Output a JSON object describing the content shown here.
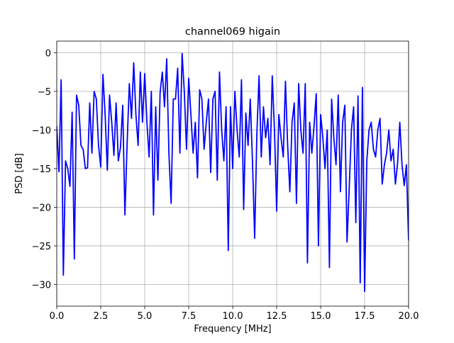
{
  "chart_data": {
    "type": "line",
    "title": "channel069 higain",
    "xlabel": "Frequency [MHz]",
    "ylabel": "PSD [dB]",
    "x": [
      0,
      0.125,
      0.25,
      0.375,
      0.5,
      0.625,
      0.75,
      0.875,
      1,
      1.125,
      1.25,
      1.375,
      1.5,
      1.625,
      1.75,
      1.875,
      2,
      2.125,
      2.25,
      2.375,
      2.5,
      2.625,
      2.75,
      2.875,
      3,
      3.125,
      3.25,
      3.375,
      3.5,
      3.625,
      3.75,
      3.875,
      4,
      4.125,
      4.25,
      4.375,
      4.5,
      4.625,
      4.75,
      4.875,
      5,
      5.125,
      5.25,
      5.375,
      5.5,
      5.625,
      5.75,
      5.875,
      6,
      6.125,
      6.25,
      6.375,
      6.5,
      6.625,
      6.75,
      6.875,
      7,
      7.125,
      7.25,
      7.375,
      7.5,
      7.625,
      7.75,
      7.875,
      8,
      8.125,
      8.25,
      8.375,
      8.5,
      8.625,
      8.75,
      8.875,
      9,
      9.125,
      9.25,
      9.375,
      9.5,
      9.625,
      9.75,
      9.875,
      10,
      10.125,
      10.25,
      10.375,
      10.5,
      10.625,
      10.75,
      10.875,
      11,
      11.125,
      11.25,
      11.375,
      11.5,
      11.625,
      11.75,
      11.875,
      12,
      12.125,
      12.25,
      12.375,
      12.5,
      12.625,
      12.75,
      12.875,
      13,
      13.125,
      13.25,
      13.375,
      13.5,
      13.625,
      13.75,
      13.875,
      14,
      14.125,
      14.25,
      14.375,
      14.5,
      14.625,
      14.75,
      14.875,
      15,
      15.125,
      15.25,
      15.375,
      15.5,
      15.625,
      15.75,
      15.875,
      16,
      16.125,
      16.25,
      16.375,
      16.5,
      16.625,
      16.75,
      16.875,
      17,
      17.125,
      17.25,
      17.375,
      17.5,
      17.625,
      17.75,
      17.875,
      18,
      18.125,
      18.25,
      18.375,
      18.5,
      18.625,
      18.75,
      18.875,
      19,
      19.125,
      19.25,
      19.375,
      19.5,
      19.625,
      19.75,
      19.875,
      20
    ],
    "series": [
      {
        "name": "PSD",
        "color": "#0000ff",
        "values": [
          -9.5,
          -15.4,
          -3.5,
          -28.8,
          -14,
          -15,
          -17.3,
          -7.7,
          -26.7,
          -5.5,
          -6.8,
          -12,
          -12.5,
          -15,
          -14.9,
          -6.5,
          -13,
          -5,
          -6,
          -12,
          -14.8,
          -2.8,
          -8,
          -15.2,
          -5.5,
          -9,
          -13.3,
          -6.5,
          -14,
          -12.2,
          -6.8,
          -21,
          -11.8,
          -4,
          -8.5,
          -1.3,
          -8,
          -12,
          -2.5,
          -9,
          -2.7,
          -9,
          -13.5,
          -5,
          -21,
          -7,
          -16.5,
          -5.2,
          -2.5,
          -7,
          -0.8,
          -13,
          -19.5,
          -6,
          -6,
          -2,
          -13,
          -0.1,
          -5,
          -12.5,
          -3.3,
          -8,
          -13,
          -9,
          -16.2,
          -4.8,
          -6,
          -12.5,
          -9,
          -6,
          -15.5,
          -6,
          -5,
          -16.5,
          -2.5,
          -10,
          -14,
          -7,
          -25.6,
          -7,
          -15,
          -5,
          -10,
          -13.5,
          -3.5,
          -20.3,
          -7.8,
          -12,
          -6,
          -14,
          -24,
          -10.5,
          -3,
          -13.5,
          -7,
          -11,
          -8.5,
          -14.5,
          -3,
          -10,
          -20.5,
          -8,
          -11,
          -13.5,
          -3.7,
          -12,
          -18,
          -9,
          -6.5,
          -19.5,
          -4,
          -10,
          -13,
          -4,
          -27.2,
          -9,
          -13,
          -9.5,
          -5.3,
          -25,
          -8,
          -11,
          -15,
          -10,
          -27.8,
          -6,
          -11,
          -14.5,
          -5.5,
          -18,
          -9,
          -6.8,
          -24.5,
          -17.5,
          -10,
          -7,
          -22,
          -5.6,
          -29.8,
          -4.5,
          -30.9,
          -14,
          -10,
          -9,
          -12.5,
          -13.5,
          -10,
          -8.5,
          -17,
          -14.5,
          -13,
          -10,
          -14,
          -12.5,
          -17,
          -14.3,
          -9,
          -14.5,
          -17.2,
          -14.5,
          -24.3
        ]
      }
    ],
    "xlim": [
      0,
      20
    ],
    "ylim": [
      -32.8,
      1.5
    ],
    "xticks": [
      {
        "value": 0,
        "label": "0.0"
      },
      2.5,
      {
        "value": 5,
        "label": "5.0"
      },
      7.5,
      {
        "value": 10,
        "label": "10.0"
      },
      12.5,
      {
        "value": 15,
        "label": "15.0"
      },
      17.5,
      {
        "value": 20,
        "label": "20.0"
      }
    ],
    "yticks": [
      0,
      {
        "value": -5,
        "label": "−5"
      },
      {
        "value": -10,
        "label": "−10"
      },
      {
        "value": -15,
        "label": "−15"
      },
      {
        "value": -20,
        "label": "−20"
      },
      {
        "value": -25,
        "label": "−25"
      },
      {
        "value": -30,
        "label": "−30"
      }
    ],
    "grid": true
  }
}
